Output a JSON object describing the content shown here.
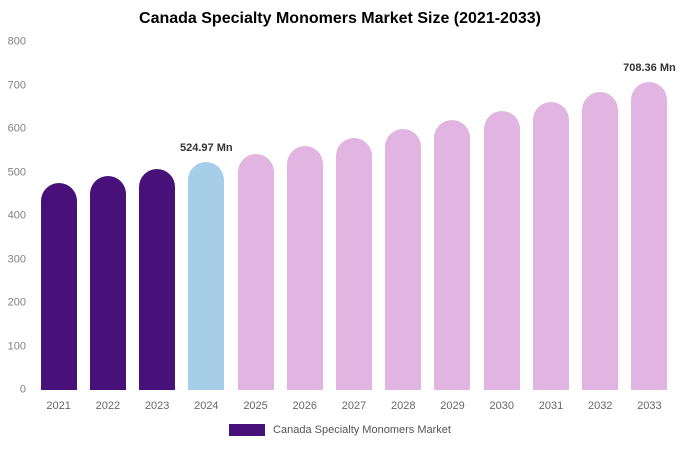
{
  "title": "Canada Specialty Monomers Market Size (2021-2033)",
  "legend": {
    "label": "Canada Specialty Monomers Market",
    "swatch_color": "#471179"
  },
  "chart_data": {
    "type": "bar",
    "title": "Canada Specialty Monomers Market Size (2021-2033)",
    "xlabel": "",
    "ylabel": "",
    "categories": [
      "2021",
      "2022",
      "2023",
      "2024",
      "2025",
      "2026",
      "2027",
      "2028",
      "2029",
      "2030",
      "2031",
      "2032",
      "2033"
    ],
    "values": [
      475.0,
      491.2,
      507.9,
      524.97,
      542.7,
      561.1,
      580.1,
      599.7,
      620.0,
      641.0,
      662.7,
      685.1,
      708.36
    ],
    "ylim": [
      0,
      800
    ],
    "yticks": [
      0,
      100,
      200,
      300,
      400,
      500,
      600,
      700,
      800
    ],
    "grid": false,
    "legend_position": "bottom",
    "colors": {
      "historical": "#471179",
      "highlight": "#A6CEE8",
      "forecast": "#E2B4E1"
    },
    "bar_colors": [
      "#471179",
      "#471179",
      "#471179",
      "#A6CEE8",
      "#E2B4E1",
      "#E2B4E1",
      "#E2B4E1",
      "#E2B4E1",
      "#E2B4E1",
      "#E2B4E1",
      "#E2B4E1",
      "#E2B4E1",
      "#E2B4E1"
    ],
    "annotations": [
      {
        "category": "2024",
        "text": "524.97 Mn"
      },
      {
        "category": "2033",
        "text": "708.36 Mn"
      }
    ],
    "legend_entries": [
      "Canada Specialty Monomers Market"
    ]
  }
}
